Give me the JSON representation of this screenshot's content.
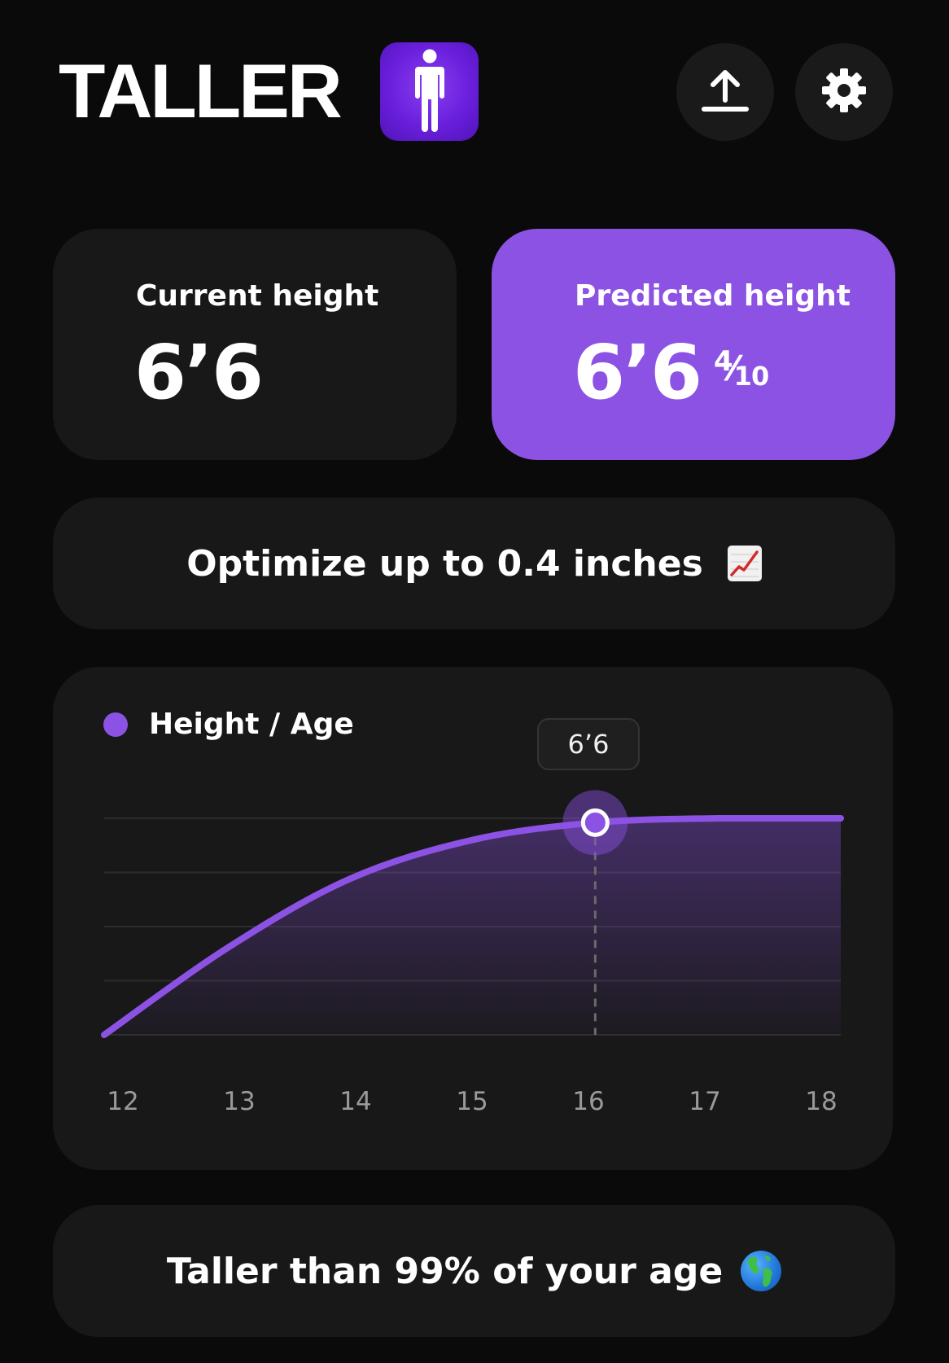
{
  "header": {
    "title": "TALLER",
    "logo_icon": "person-icon",
    "upload_icon": "upload-icon",
    "settings_icon": "gear-icon"
  },
  "current": {
    "label": "Current height",
    "value": "6’6"
  },
  "predicted": {
    "label": "Predicted height",
    "value": "6’6",
    "fraction_num": "4",
    "fraction_den": "10",
    "accent_color": "#8c52e4"
  },
  "optimize": {
    "text": "Optimize up to 0.4 inches",
    "icon": "chart-increasing-icon"
  },
  "percentile": {
    "text": "Taller than 99% of  your age",
    "icon": "globe-icon"
  },
  "chart_data": {
    "type": "area",
    "legend": [
      "Height / Age"
    ],
    "series": [
      {
        "name": "Height / Age",
        "color": "#8c52e4",
        "x": [
          12,
          13,
          14,
          15,
          16,
          17,
          18
        ],
        "y": [
          0.0,
          0.4,
          0.72,
          0.9,
          0.98,
          1.0,
          1.0
        ]
      }
    ],
    "x_ticks": [
      "12",
      "13",
      "14",
      "15",
      "16",
      "17",
      "18"
    ],
    "xlim": [
      12,
      18
    ],
    "ylim": [
      0,
      1
    ],
    "highlight": {
      "x": 16,
      "label": "6’6"
    },
    "grid": true,
    "legend_position": "top-left"
  }
}
